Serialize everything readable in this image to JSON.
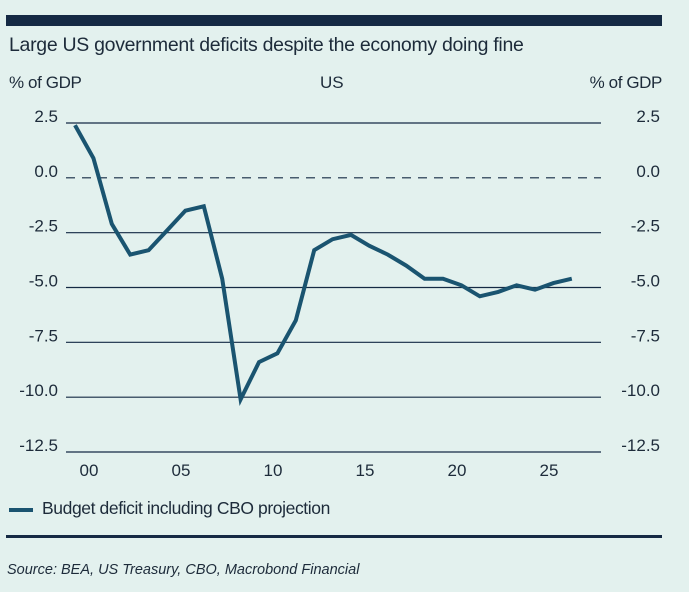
{
  "header": {
    "title": "Large US government deficits despite the economy doing fine",
    "left_axis_unit": "% of GDP",
    "subtitle": "US",
    "right_axis_unit": "% of GDP"
  },
  "legend": {
    "label": "Budget deficit including CBO projection"
  },
  "footer": {
    "source": "Source: BEA, US Treasury, CBO, Macrobond Financial"
  },
  "colors": {
    "background": "#e3f1ee",
    "series": "#1a5470",
    "rule": "#152a44",
    "grid": "#152a44",
    "text": "#1d2b3a"
  },
  "chart_data": {
    "type": "line",
    "title": "Large US government deficits despite the economy doing fine",
    "subtitle": "US",
    "ylabel": "% of GDP",
    "ylabel_right": "% of GDP",
    "xlabel": "",
    "ylim": [
      -12.5,
      2.5
    ],
    "yticks": [
      2.5,
      0.0,
      -2.5,
      -5.0,
      -7.5,
      -10.0,
      -12.5
    ],
    "ytick_labels": [
      "2.5",
      "0.0",
      "-2.5",
      "-5.0",
      "-7.5",
      "-10.0",
      "-12.5"
    ],
    "xticks": [
      2000,
      2005,
      2010,
      2015,
      2020,
      2025
    ],
    "xtick_labels": [
      "00",
      "05",
      "10",
      "15",
      "20",
      "25"
    ],
    "grid": "horizontal",
    "zero_line": "dashed",
    "legend_position": "bottom-left",
    "series": [
      {
        "name": "Budget deficit including CBO projection",
        "x": [
          2000,
          2001,
          2002,
          2003,
          2004,
          2005,
          2006,
          2007,
          2008,
          2009,
          2010,
          2011,
          2012,
          2013,
          2014,
          2015,
          2016,
          2017,
          2018,
          2019,
          2020,
          2021,
          2022,
          2023,
          2024,
          2025,
          2026,
          2027
        ],
        "values": [
          2.4,
          0.9,
          -2.1,
          -3.5,
          -3.3,
          -2.4,
          -1.5,
          -1.3,
          -4.6,
          -10.1,
          -8.4,
          -8.0,
          -6.5,
          -3.3,
          -2.8,
          -2.6,
          -3.1,
          -3.5,
          -4.0,
          -4.6,
          -4.6,
          -4.9,
          -5.4,
          -5.2,
          -4.9,
          -5.1,
          -4.8,
          -4.6
        ]
      }
    ]
  }
}
